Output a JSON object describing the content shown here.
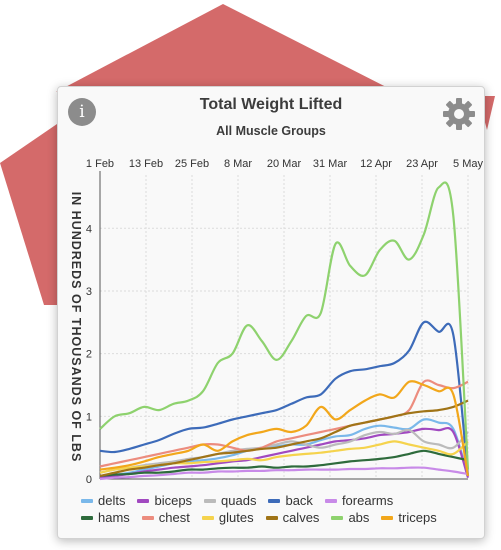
{
  "header": {
    "title": "Total Weight Lifted",
    "subtitle": "All Muscle Groups",
    "info_glyph": "i",
    "info_icon": "info-icon",
    "settings_icon": "gear-icon"
  },
  "colors": {
    "decoration": "#d46a6a",
    "card_background": "#f9f9f9",
    "axis_text": "#333333"
  },
  "chart_data": {
    "type": "line",
    "title": "Total Weight Lifted",
    "subtitle": "All Muscle Groups",
    "ylabel": "IN HUNDREDS OF THOUSANDS OF LBS",
    "xlabel": "",
    "x_axis_position": "top",
    "x_ticks": [
      "1 Feb",
      "13 Feb",
      "25 Feb",
      "8 Mar",
      "20 Mar",
      "31 Mar",
      "12 Apr",
      "23 Apr",
      "5 May"
    ],
    "y_ticks": [
      0,
      1,
      2,
      3,
      4
    ],
    "ylim": [
      0,
      4.85
    ],
    "grid": true,
    "legend_position": "bottom",
    "x": [
      "1 Feb",
      "5 Feb",
      "9 Feb",
      "13 Feb",
      "17 Feb",
      "21 Feb",
      "25 Feb",
      "1 Mar",
      "5 Mar",
      "8 Mar",
      "12 Mar",
      "16 Mar",
      "20 Mar",
      "24 Mar",
      "28 Mar",
      "31 Mar",
      "4 Apr",
      "8 Apr",
      "12 Apr",
      "16 Apr",
      "20 Apr",
      "23 Apr",
      "27 Apr",
      "1 May",
      "5 May",
      "9 May"
    ],
    "series": [
      {
        "name": "delts",
        "color": "#7ab8ea",
        "values": [
          0.05,
          0.07,
          0.1,
          0.15,
          0.2,
          0.25,
          0.28,
          0.3,
          0.33,
          0.38,
          0.45,
          0.5,
          0.52,
          0.55,
          0.55,
          0.62,
          0.68,
          0.7,
          0.8,
          0.85,
          0.82,
          0.8,
          0.95,
          0.9,
          0.8,
          0.05
        ]
      },
      {
        "name": "biceps",
        "color": "#a149c0",
        "values": [
          0.02,
          0.05,
          0.08,
          0.12,
          0.15,
          0.18,
          0.2,
          0.22,
          0.25,
          0.28,
          0.3,
          0.35,
          0.4,
          0.45,
          0.5,
          0.55,
          0.6,
          0.62,
          0.65,
          0.7,
          0.72,
          0.75,
          0.8,
          0.78,
          0.75,
          0.02
        ]
      },
      {
        "name": "quads",
        "color": "#bbbbbb",
        "values": [
          0.1,
          0.15,
          0.18,
          0.22,
          0.25,
          0.28,
          0.32,
          0.35,
          0.4,
          0.45,
          0.48,
          0.5,
          0.55,
          0.6,
          0.55,
          0.5,
          0.55,
          0.6,
          0.7,
          0.75,
          0.72,
          0.78,
          0.6,
          0.55,
          0.5,
          0.75
        ]
      },
      {
        "name": "back",
        "color": "#3d6bb9",
        "values": [
          0.45,
          0.43,
          0.48,
          0.55,
          0.62,
          0.72,
          0.8,
          0.82,
          0.88,
          0.95,
          1.0,
          1.05,
          1.1,
          1.2,
          1.3,
          1.35,
          1.6,
          1.72,
          1.75,
          1.8,
          1.85,
          2.05,
          2.5,
          2.35,
          2.3,
          0.05
        ]
      },
      {
        "name": "forearms",
        "color": "#c88ae8",
        "values": [
          0.0,
          0.02,
          0.03,
          0.05,
          0.06,
          0.08,
          0.1,
          0.1,
          0.12,
          0.12,
          0.13,
          0.13,
          0.14,
          0.14,
          0.15,
          0.15,
          0.15,
          0.16,
          0.16,
          0.17,
          0.17,
          0.18,
          0.18,
          0.15,
          0.12,
          0.08
        ]
      },
      {
        "name": "hams",
        "color": "#2e6b3c",
        "values": [
          0.05,
          0.07,
          0.08,
          0.1,
          0.1,
          0.12,
          0.15,
          0.15,
          0.17,
          0.18,
          0.18,
          0.2,
          0.18,
          0.2,
          0.2,
          0.22,
          0.25,
          0.28,
          0.3,
          0.32,
          0.35,
          0.4,
          0.45,
          0.4,
          0.35,
          0.3
        ]
      },
      {
        "name": "chest",
        "color": "#ec8c7e",
        "values": [
          0.2,
          0.25,
          0.3,
          0.35,
          0.4,
          0.45,
          0.5,
          0.55,
          0.55,
          0.5,
          0.45,
          0.5,
          0.6,
          0.65,
          0.7,
          0.75,
          0.8,
          0.85,
          0.9,
          0.95,
          1.0,
          1.1,
          1.55,
          1.5,
          1.45,
          1.55
        ]
      },
      {
        "name": "glutes",
        "color": "#f5d34d",
        "values": [
          0.1,
          0.15,
          0.18,
          0.2,
          0.22,
          0.25,
          0.25,
          0.27,
          0.28,
          0.3,
          0.32,
          0.3,
          0.35,
          0.38,
          0.4,
          0.42,
          0.45,
          0.48,
          0.5,
          0.55,
          0.6,
          0.55,
          0.5,
          0.45,
          0.4,
          0.6
        ]
      },
      {
        "name": "calves",
        "color": "#a07417",
        "values": [
          0.05,
          0.1,
          0.15,
          0.18,
          0.22,
          0.25,
          0.3,
          0.35,
          0.4,
          0.42,
          0.45,
          0.48,
          0.5,
          0.55,
          0.6,
          0.65,
          0.75,
          0.85,
          0.9,
          0.95,
          1.0,
          1.05,
          1.08,
          1.1,
          1.15,
          1.25
        ]
      },
      {
        "name": "abs",
        "color": "#8ed26e",
        "values": [
          0.8,
          1.0,
          1.05,
          1.15,
          1.1,
          1.2,
          1.25,
          1.4,
          1.85,
          2.0,
          2.45,
          2.2,
          1.9,
          2.2,
          2.6,
          2.65,
          3.75,
          3.4,
          3.25,
          3.65,
          3.8,
          3.5,
          3.9,
          4.65,
          4.2,
          0.15
        ]
      },
      {
        "name": "triceps",
        "color": "#f2a71b",
        "values": [
          0.15,
          0.18,
          0.22,
          0.28,
          0.35,
          0.4,
          0.45,
          0.55,
          0.45,
          0.6,
          0.7,
          0.75,
          0.8,
          0.75,
          0.85,
          1.15,
          0.95,
          1.1,
          1.25,
          1.35,
          1.3,
          1.55,
          1.5,
          1.4,
          1.35,
          0.05
        ]
      }
    ]
  }
}
